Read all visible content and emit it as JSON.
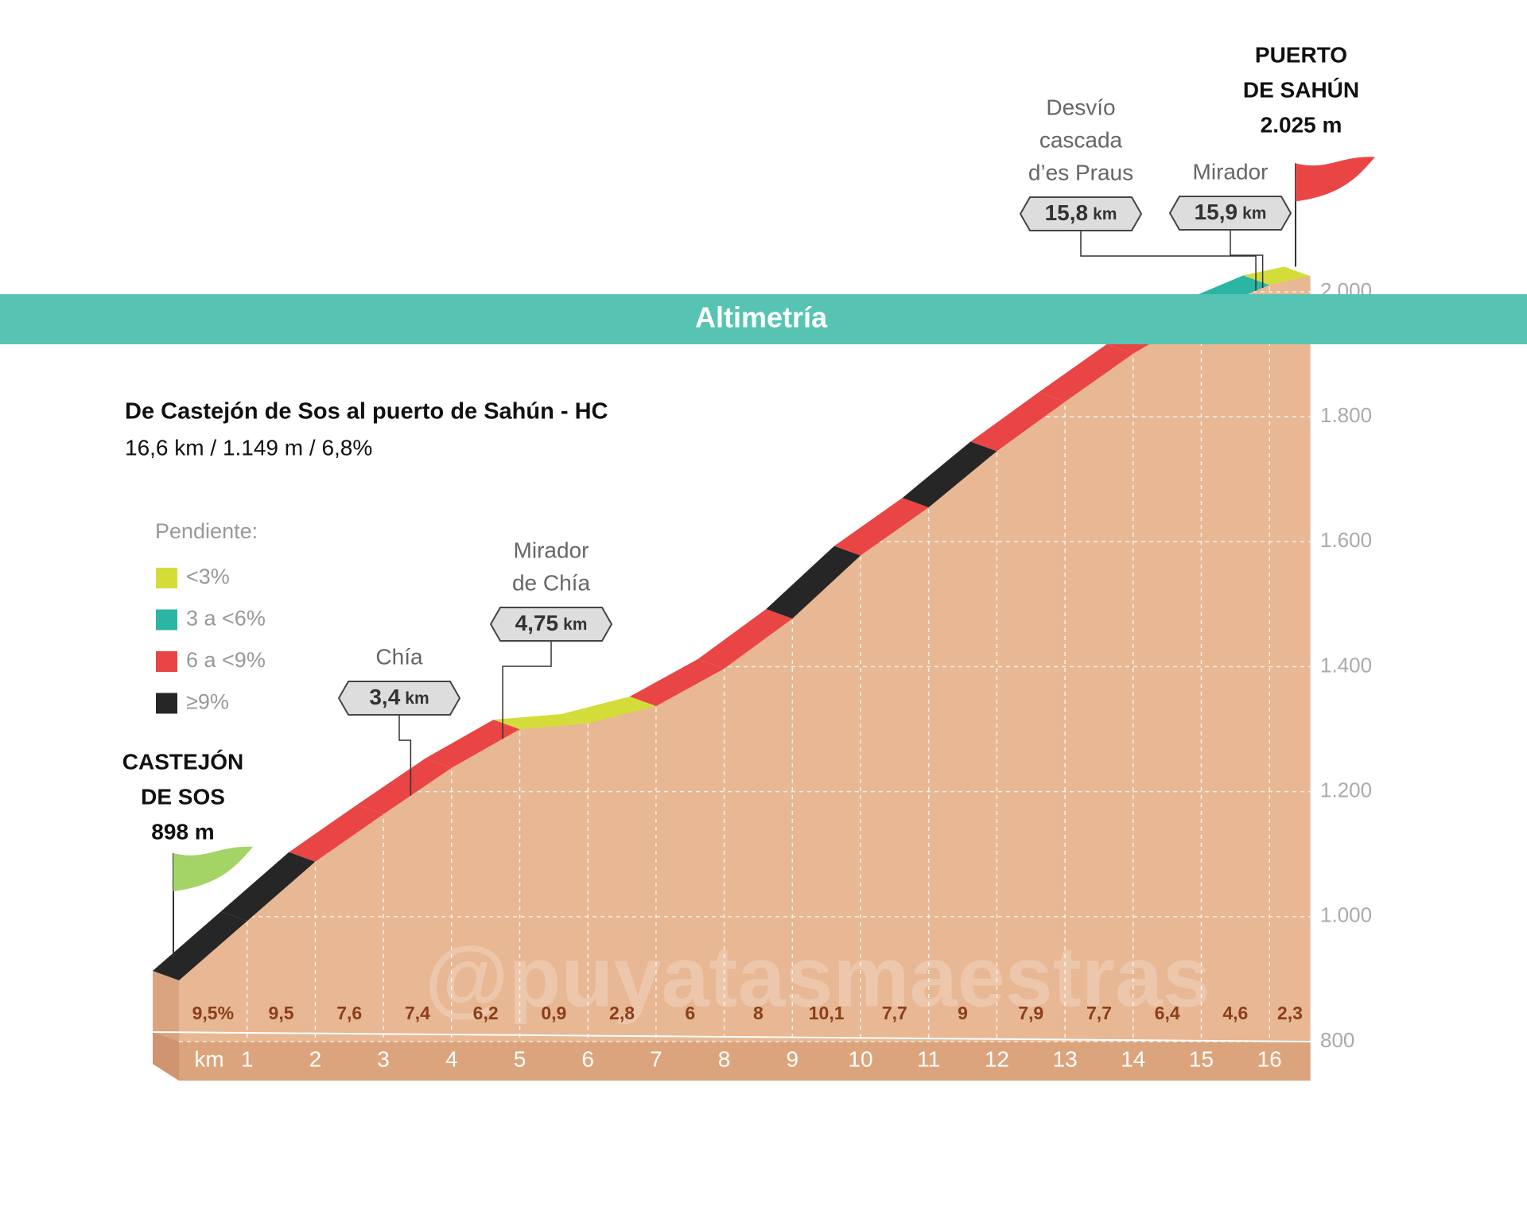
{
  "chart_data": {
    "type": "profile",
    "title": "Altimetría",
    "heading": "De Castejón de Sos al puerto de Sahún - HC",
    "subtitle": "16,6 km / 1.149 m / 6,8%",
    "watermark": "@puyatasmaestras",
    "x_unit": "km",
    "x": [
      0,
      1,
      2,
      3,
      4,
      5,
      6,
      7,
      8,
      9,
      10,
      11,
      12,
      13,
      14,
      15,
      16,
      16.6
    ],
    "values": [
      898,
      993,
      1088,
      1164,
      1238,
      1300,
      1309,
      1337,
      1397,
      1477,
      1578,
      1655,
      1745,
      1824,
      1901,
      1965,
      2011,
      2025
    ],
    "gradients": [
      9.5,
      9.5,
      7.6,
      7.4,
      6.2,
      0.9,
      2.8,
      6,
      8,
      10.1,
      7.7,
      9,
      7.9,
      7.7,
      6.4,
      4.6,
      2.3
    ],
    "gradient_labels": [
      "9,5%",
      "9,5",
      "7,6",
      "7,4",
      "6,2",
      "0,9",
      "2,8",
      "6",
      "8",
      "10,1",
      "7,7",
      "9",
      "7,9",
      "7,7",
      "6,4",
      "4,6",
      "2,3"
    ],
    "colors": [
      "#262626",
      "#262626",
      "#e94545",
      "#e94545",
      "#e94545",
      "#d4dc3a",
      "#d4dc3a",
      "#e94545",
      "#e94545",
      "#262626",
      "#e94545",
      "#262626",
      "#e94545",
      "#e94545",
      "#e94545",
      "#2bb5a4",
      "#d4dc3a"
    ],
    "legend_title": "Pendiente:",
    "legend": [
      {
        "label": "<3%",
        "color": "#d4dc3a"
      },
      {
        "label": "3 a <6%",
        "color": "#2bb5a4"
      },
      {
        "label": "6 a <9%",
        "color": "#e94545"
      },
      {
        "label": "≥9%",
        "color": "#262626"
      }
    ],
    "ylim": [
      800,
      2000
    ],
    "yticks": [
      800,
      {
        "value": 1000,
        "label": "1.000"
      },
      {
        "value": 1200,
        "label": "1.200"
      },
      {
        "value": 1400,
        "label": "1.400"
      },
      {
        "value": 1600,
        "label": "1.600"
      },
      {
        "value": 1800,
        "label": "1.800"
      },
      {
        "value": 2000,
        "label": "2.000"
      }
    ],
    "xticks": [
      1,
      2,
      3,
      4,
      5,
      6,
      7,
      8,
      9,
      10,
      11,
      12,
      13,
      14,
      15,
      16
    ],
    "start": {
      "name_lines": [
        "CASTEJÓN",
        "DE SOS"
      ],
      "elevation": {
        "value": 898,
        "label": "898 m"
      },
      "color": "#a3d465"
    },
    "end": {
      "name_lines": [
        "PUERTO",
        "DE SAHÚN"
      ],
      "elevation": {
        "value": 2025,
        "label": "2.025 m"
      },
      "color": "#e94545"
    },
    "annotations": [
      {
        "name_lines": [
          "Chía"
        ],
        "km": {
          "value": 3.4,
          "label": "3,4"
        }
      },
      {
        "name_lines": [
          "Mirador",
          "de Chía"
        ],
        "km": {
          "value": 4.75,
          "label": "4,75"
        }
      },
      {
        "name_lines": [
          "Desvío",
          "cascada",
          "d’es Praus"
        ],
        "km": {
          "value": 15.8,
          "label": "15,8"
        }
      },
      {
        "name_lines": [
          "Mirador"
        ],
        "km": {
          "value": 15.9,
          "label": "15,9"
        }
      }
    ]
  }
}
